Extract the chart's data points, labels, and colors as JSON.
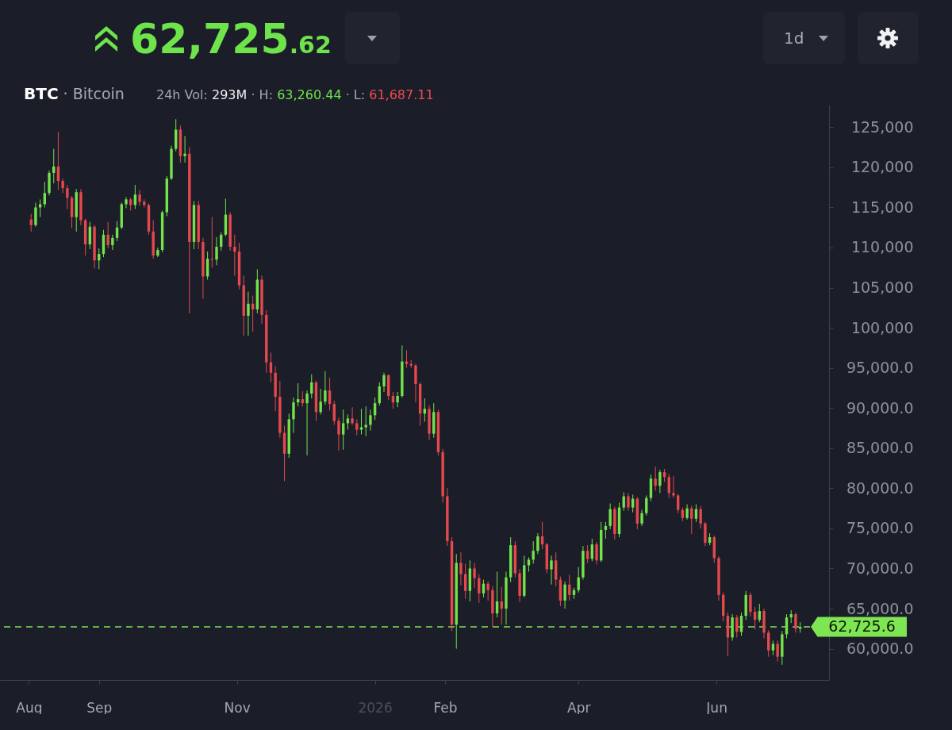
{
  "chart_data": {
    "type": "candlestick",
    "title": "62,725.62",
    "subtitle": "BTC · Bitcoin",
    "annotations": [
      "24h Vol: 293M · H: 63,260.44 · L: 61,687.11",
      "1d"
    ],
    "x": [
      "2025-08-02",
      "2025-08-04",
      "2025-08-06",
      "2025-08-08",
      "2025-08-10",
      "2025-08-12",
      "2025-08-14",
      "2025-08-16",
      "2025-08-18",
      "2025-08-20",
      "2025-08-22",
      "2025-08-24",
      "2025-08-26",
      "2025-08-28",
      "2025-08-30",
      "2025-09-01",
      "2025-09-03",
      "2025-09-05",
      "2025-09-07",
      "2025-09-09",
      "2025-09-11",
      "2025-09-13",
      "2025-09-15",
      "2025-09-17",
      "2025-09-19",
      "2025-09-21",
      "2025-09-23",
      "2025-09-25",
      "2025-09-27",
      "2025-09-29",
      "2025-10-01",
      "2025-10-03",
      "2025-10-05",
      "2025-10-07",
      "2025-10-09",
      "2025-10-11",
      "2025-10-13",
      "2025-10-15",
      "2025-10-17",
      "2025-10-19",
      "2025-10-21",
      "2025-10-23",
      "2025-10-25",
      "2025-10-27",
      "2025-10-29",
      "2025-10-31",
      "2025-11-02",
      "2025-11-04",
      "2025-11-06",
      "2025-11-08",
      "2025-11-10",
      "2025-11-12",
      "2025-11-14",
      "2025-11-16",
      "2025-11-18",
      "2025-11-20",
      "2025-11-22",
      "2025-11-24",
      "2025-11-26",
      "2025-11-28",
      "2025-11-30",
      "2025-12-02",
      "2025-12-04",
      "2025-12-06",
      "2025-12-08",
      "2025-12-10",
      "2025-12-12",
      "2025-12-14",
      "2025-12-16",
      "2025-12-18",
      "2025-12-20",
      "2025-12-22",
      "2025-12-24",
      "2025-12-26",
      "2025-12-28",
      "2025-12-30",
      "2026-01-01",
      "2026-01-03",
      "2026-01-05",
      "2026-01-07",
      "2026-01-09",
      "2026-01-11",
      "2026-01-13",
      "2026-01-15",
      "2026-01-17",
      "2026-01-19",
      "2026-01-21",
      "2026-01-23",
      "2026-01-25",
      "2026-01-27",
      "2026-01-29",
      "2026-01-31",
      "2026-02-02",
      "2026-02-04",
      "2026-02-06",
      "2026-02-08",
      "2026-02-10",
      "2026-02-12",
      "2026-02-14",
      "2026-02-16",
      "2026-02-18",
      "2026-02-20",
      "2026-02-22",
      "2026-02-24",
      "2026-02-26",
      "2026-02-28",
      "2026-03-02",
      "2026-03-04",
      "2026-03-06",
      "2026-03-08",
      "2026-03-10",
      "2026-03-12",
      "2026-03-14",
      "2026-03-16",
      "2026-03-18",
      "2026-03-20",
      "2026-03-22",
      "2026-03-24",
      "2026-03-26",
      "2026-03-28",
      "2026-03-30",
      "2026-04-01",
      "2026-04-03",
      "2026-04-05",
      "2026-04-07",
      "2026-04-09",
      "2026-04-11",
      "2026-04-13",
      "2026-04-15",
      "2026-04-17",
      "2026-04-19",
      "2026-04-21",
      "2026-04-23",
      "2026-04-25",
      "2026-04-27",
      "2026-04-29",
      "2026-05-01",
      "2026-05-03",
      "2026-05-05",
      "2026-05-07",
      "2026-05-09",
      "2026-05-11",
      "2026-05-13",
      "2026-05-15",
      "2026-05-17",
      "2026-05-19",
      "2026-05-21",
      "2026-05-23",
      "2026-05-25",
      "2026-05-27",
      "2026-05-29",
      "2026-05-31",
      "2026-06-02",
      "2026-06-04",
      "2026-06-06",
      "2026-06-08",
      "2026-06-10",
      "2026-06-12",
      "2026-06-14",
      "2026-06-16",
      "2026-06-18",
      "2026-06-20",
      "2026-06-22",
      "2026-06-24",
      "2026-06-26",
      "2026-06-28",
      "2026-06-30",
      "2026-07-02",
      "2026-07-04",
      "2026-07-06",
      "2026-07-08"
    ],
    "ohlc": [
      [
        113500,
        114200,
        112000,
        112800
      ],
      [
        112800,
        115600,
        112600,
        115000
      ],
      [
        115000,
        116000,
        113800,
        115400
      ],
      [
        115400,
        118200,
        115000,
        116800
      ],
      [
        116800,
        119600,
        116500,
        119300
      ],
      [
        119300,
        122300,
        118000,
        120100
      ],
      [
        120100,
        124400,
        117200,
        118300
      ],
      [
        118300,
        118600,
        116800,
        117400
      ],
      [
        117400,
        117800,
        114800,
        116200
      ],
      [
        116200,
        116400,
        112400,
        113800
      ],
      [
        113800,
        117300,
        112000,
        116900
      ],
      [
        116900,
        117300,
        112800,
        113400
      ],
      [
        113400,
        113600,
        109000,
        110400
      ],
      [
        110400,
        113200,
        109800,
        112600
      ],
      [
        112600,
        112800,
        107400,
        108400
      ],
      [
        108400,
        109900,
        107300,
        109200
      ],
      [
        109200,
        112200,
        108800,
        111600
      ],
      [
        111600,
        113200,
        109900,
        110300
      ],
      [
        110300,
        111600,
        109700,
        111200
      ],
      [
        111200,
        113300,
        110800,
        112500
      ],
      [
        112500,
        115600,
        112300,
        115400
      ],
      [
        115400,
        116300,
        114900,
        116000
      ],
      [
        116000,
        116200,
        114600,
        115300
      ],
      [
        115300,
        117800,
        114800,
        116600
      ],
      [
        116600,
        117200,
        115200,
        115700
      ],
      [
        115700,
        116000,
        115000,
        115300
      ],
      [
        115300,
        115500,
        111600,
        112000
      ],
      [
        112000,
        113400,
        108600,
        109000
      ],
      [
        109000,
        110000,
        108800,
        109700
      ],
      [
        109700,
        114600,
        109400,
        114400
      ],
      [
        114400,
        118900,
        113900,
        118600
      ],
      [
        118600,
        122700,
        118400,
        122300
      ],
      [
        122300,
        126000,
        122000,
        124700
      ],
      [
        124700,
        125200,
        120600,
        121400
      ],
      [
        121400,
        123900,
        120600,
        121700
      ],
      [
        121700,
        122500,
        101800,
        110700
      ],
      [
        110700,
        115800,
        109800,
        115300
      ],
      [
        115300,
        115800,
        109800,
        110700
      ],
      [
        110700,
        111200,
        103600,
        106400
      ],
      [
        106400,
        109500,
        106000,
        108600
      ],
      [
        108600,
        113800,
        107500,
        108500
      ],
      [
        108500,
        111300,
        107800,
        110100
      ],
      [
        110100,
        111900,
        109600,
        111600
      ],
      [
        111600,
        116100,
        111400,
        114100
      ],
      [
        114100,
        114400,
        109600,
        110100
      ],
      [
        110100,
        111600,
        106500,
        109500
      ],
      [
        109500,
        110600,
        104800,
        105300
      ],
      [
        105300,
        106500,
        99000,
        101500
      ],
      [
        101500,
        104500,
        99000,
        103000
      ],
      [
        103000,
        104000,
        99500,
        102300
      ],
      [
        102300,
        107300,
        101800,
        106000
      ],
      [
        106000,
        106500,
        100500,
        101600
      ],
      [
        101600,
        102200,
        94400,
        95700
      ],
      [
        95700,
        96900,
        93200,
        94400
      ],
      [
        94400,
        95200,
        89600,
        91400
      ],
      [
        91400,
        93400,
        86300,
        86900
      ],
      [
        86900,
        87800,
        80900,
        84300
      ],
      [
        84300,
        89300,
        83800,
        88600
      ],
      [
        88600,
        91300,
        86900,
        90700
      ],
      [
        90700,
        93100,
        90200,
        91100
      ],
      [
        91100,
        92100,
        90200,
        90600
      ],
      [
        90600,
        92200,
        84100,
        91800
      ],
      [
        91800,
        94200,
        91200,
        93200
      ],
      [
        93200,
        93400,
        88400,
        89500
      ],
      [
        89500,
        92400,
        89200,
        90800
      ],
      [
        90800,
        94600,
        90400,
        92200
      ],
      [
        92200,
        93800,
        89700,
        90500
      ],
      [
        90500,
        90900,
        87900,
        88400
      ],
      [
        88400,
        88800,
        84700,
        86700
      ],
      [
        86700,
        89800,
        84800,
        88100
      ],
      [
        88100,
        89200,
        87300,
        88700
      ],
      [
        88700,
        90100,
        87900,
        88100
      ],
      [
        88100,
        88600,
        86600,
        87300
      ],
      [
        87300,
        89900,
        86700,
        87600
      ],
      [
        87600,
        90200,
        86500,
        87900
      ],
      [
        87900,
        89800,
        87200,
        89100
      ],
      [
        89100,
        91300,
        88500,
        90600
      ],
      [
        90600,
        93200,
        90300,
        92700
      ],
      [
        92700,
        94400,
        92000,
        94100
      ],
      [
        94100,
        94200,
        91000,
        91500
      ],
      [
        91500,
        92000,
        89900,
        90700
      ],
      [
        90700,
        92000,
        90100,
        91500
      ],
      [
        91500,
        97800,
        91300,
        95800
      ],
      [
        95800,
        97200,
        95000,
        95500
      ],
      [
        95500,
        96000,
        95000,
        95300
      ],
      [
        95300,
        95500,
        90700,
        93000
      ],
      [
        93000,
        93200,
        87800,
        89300
      ],
      [
        89300,
        91200,
        88300,
        89900
      ],
      [
        89900,
        90300,
        86000,
        86800
      ],
      [
        86800,
        90600,
        86300,
        89500
      ],
      [
        89500,
        89800,
        84100,
        84500
      ],
      [
        84500,
        84900,
        78200,
        79000
      ],
      [
        79000,
        80000,
        72800,
        73400
      ],
      [
        73400,
        73900,
        62200,
        63000
      ],
      [
        63000,
        71800,
        60000,
        70700
      ],
      [
        70700,
        72000,
        67900,
        69300
      ],
      [
        69300,
        70600,
        66200,
        67200
      ],
      [
        67200,
        71000,
        65900,
        70000
      ],
      [
        70000,
        70700,
        67600,
        68800
      ],
      [
        68800,
        69300,
        65700,
        66900
      ],
      [
        66900,
        68600,
        66400,
        68100
      ],
      [
        68100,
        68400,
        66000,
        67300
      ],
      [
        67300,
        67800,
        62700,
        64400
      ],
      [
        64400,
        69600,
        63900,
        65900
      ],
      [
        65900,
        67700,
        63000,
        65000
      ],
      [
        65000,
        69600,
        63000,
        68900
      ],
      [
        68900,
        73900,
        68300,
        72900
      ],
      [
        72900,
        73400,
        68900,
        69400
      ],
      [
        69400,
        69900,
        65800,
        66600
      ],
      [
        66600,
        71600,
        66400,
        70400
      ],
      [
        70400,
        71400,
        69600,
        71100
      ],
      [
        71100,
        73400,
        70600,
        72200
      ],
      [
        72200,
        74400,
        71800,
        74000
      ],
      [
        74000,
        75800,
        72400,
        73000
      ],
      [
        73000,
        73200,
        69400,
        69900
      ],
      [
        69900,
        71600,
        68000,
        71000
      ],
      [
        71000,
        72000,
        67800,
        68600
      ],
      [
        68600,
        69000,
        65300,
        66000
      ],
      [
        66000,
        68400,
        65000,
        68000
      ],
      [
        68000,
        69200,
        66000,
        66700
      ],
      [
        66700,
        67600,
        66200,
        67300
      ],
      [
        67300,
        70200,
        67000,
        68900
      ],
      [
        68900,
        72800,
        68600,
        72200
      ],
      [
        72200,
        72900,
        70700,
        71200
      ],
      [
        71200,
        73700,
        70900,
        73000
      ],
      [
        73000,
        73300,
        70500,
        71000
      ],
      [
        71000,
        75800,
        70800,
        74800
      ],
      [
        74800,
        75800,
        73700,
        75300
      ],
      [
        75300,
        78100,
        74900,
        77400
      ],
      [
        77400,
        77700,
        73600,
        74300
      ],
      [
        74300,
        78200,
        73900,
        77600
      ],
      [
        77600,
        79500,
        77200,
        79000
      ],
      [
        79000,
        79400,
        77200,
        77600
      ],
      [
        77600,
        79200,
        77000,
        78700
      ],
      [
        78700,
        78900,
        74900,
        75600
      ],
      [
        75600,
        77300,
        75300,
        76900
      ],
      [
        76900,
        79100,
        76600,
        78800
      ],
      [
        78800,
        81700,
        78400,
        81200
      ],
      [
        81200,
        82700,
        79700,
        80300
      ],
      [
        80300,
        82300,
        79400,
        82000
      ],
      [
        82000,
        82400,
        80800,
        81400
      ],
      [
        81400,
        81800,
        78800,
        79400
      ],
      [
        79400,
        81500,
        78800,
        79100
      ],
      [
        79100,
        79300,
        76900,
        77300
      ],
      [
        77300,
        77600,
        75900,
        76300
      ],
      [
        76300,
        78000,
        76100,
        77500
      ],
      [
        77500,
        77800,
        74300,
        76200
      ],
      [
        76200,
        78000,
        75800,
        77400
      ],
      [
        77400,
        77800,
        75000,
        75600
      ],
      [
        75600,
        75800,
        72800,
        73200
      ],
      [
        73200,
        74400,
        72900,
        73900
      ],
      [
        73900,
        74100,
        70700,
        71300
      ],
      [
        71300,
        71500,
        66000,
        66700
      ],
      [
        66700,
        67000,
        63400,
        64100
      ],
      [
        64100,
        64500,
        59100,
        61400
      ],
      [
        61400,
        64300,
        61000,
        63900
      ],
      [
        63900,
        64200,
        61400,
        62100
      ],
      [
        62100,
        64500,
        61600,
        64100
      ],
      [
        64100,
        67200,
        63600,
        66700
      ],
      [
        66700,
        67000,
        64000,
        64600
      ],
      [
        64600,
        65200,
        62400,
        63600
      ],
      [
        63600,
        65600,
        63300,
        64700
      ],
      [
        64700,
        65000,
        61300,
        62000
      ],
      [
        62000,
        62300,
        59000,
        59800
      ],
      [
        59800,
        61000,
        59200,
        60600
      ],
      [
        60600,
        61000,
        58400,
        59000
      ],
      [
        59000,
        62200,
        58000,
        61800
      ],
      [
        61800,
        64300,
        61300,
        63900
      ],
      [
        63900,
        64800,
        63200,
        64300
      ],
      [
        64300,
        64500,
        62000,
        62500
      ],
      [
        62500,
        63300,
        62000,
        62725.6
      ]
    ],
    "colors": [
      "#e5484d",
      "#74e24b",
      "#74e24b",
      "#74e24b",
      "#74e24b",
      "#74e24b",
      "#e5484d",
      "#e5484d",
      "#e5484d",
      "#e5484d",
      "#74e24b",
      "#e5484d",
      "#e5484d",
      "#74e24b",
      "#e5484d",
      "#74e24b",
      "#74e24b",
      "#e5484d",
      "#74e24b",
      "#74e24b",
      "#74e24b",
      "#74e24b",
      "#e5484d",
      "#74e24b",
      "#e5484d",
      "#e5484d",
      "#e5484d",
      "#e5484d",
      "#74e24b",
      "#74e24b",
      "#74e24b",
      "#74e24b",
      "#74e24b",
      "#e5484d",
      "#74e24b",
      "#e5484d",
      "#74e24b",
      "#e5484d",
      "#e5484d",
      "#74e24b",
      "#e5484d",
      "#74e24b",
      "#74e24b",
      "#74e24b",
      "#e5484d",
      "#e5484d",
      "#e5484d",
      "#e5484d",
      "#74e24b",
      "#e5484d",
      "#74e24b",
      "#e5484d",
      "#e5484d",
      "#e5484d",
      "#e5484d",
      "#e5484d",
      "#e5484d",
      "#74e24b",
      "#74e24b",
      "#74e24b",
      "#e5484d",
      "#74e24b",
      "#74e24b",
      "#e5484d",
      "#74e24b",
      "#74e24b",
      "#e5484d",
      "#e5484d",
      "#e5484d",
      "#74e24b",
      "#74e24b",
      "#e5484d",
      "#e5484d",
      "#74e24b",
      "#74e24b",
      "#74e24b",
      "#74e24b",
      "#74e24b",
      "#74e24b",
      "#e5484d",
      "#e5484d",
      "#74e24b",
      "#74e24b",
      "#e5484d",
      "#e5484d",
      "#e5484d",
      "#e5484d",
      "#74e24b",
      "#e5484d",
      "#74e24b",
      "#e5484d",
      "#e5484d",
      "#e5484d",
      "#e5484d",
      "#74e24b",
      "#e5484d",
      "#e5484d",
      "#74e24b",
      "#e5484d",
      "#e5484d",
      "#74e24b",
      "#e5484d",
      "#e5484d",
      "#74e24b",
      "#e5484d",
      "#74e24b",
      "#74e24b",
      "#e5484d",
      "#e5484d",
      "#74e24b",
      "#74e24b",
      "#74e24b",
      "#74e24b",
      "#e5484d",
      "#e5484d",
      "#74e24b",
      "#e5484d",
      "#e5484d",
      "#74e24b",
      "#e5484d",
      "#74e24b",
      "#74e24b",
      "#74e24b",
      "#e5484d",
      "#74e24b",
      "#e5484d",
      "#74e24b",
      "#74e24b",
      "#74e24b",
      "#e5484d",
      "#74e24b",
      "#74e24b",
      "#e5484d",
      "#74e24b",
      "#e5484d",
      "#74e24b",
      "#74e24b",
      "#74e24b",
      "#e5484d",
      "#74e24b",
      "#e5484d",
      "#e5484d",
      "#e5484d",
      "#e5484d",
      "#e5484d",
      "#74e24b",
      "#e5484d",
      "#74e24b",
      "#e5484d",
      "#e5484d",
      "#74e24b",
      "#e5484d",
      "#e5484d",
      "#e5484d",
      "#e5484d",
      "#74e24b",
      "#e5484d",
      "#74e24b",
      "#74e24b",
      "#e5484d",
      "#e5484d",
      "#74e24b",
      "#e5484d",
      "#e5484d",
      "#74e24b",
      "#e5484d",
      "#74e24b",
      "#74e24b",
      "#74e24b",
      "#e5484d",
      "#74e24b"
    ],
    "xlim": [
      "2025-07-21",
      "2026-07-19"
    ],
    "xticks": [
      {
        "value": "2025-08-01",
        "label": "Aug"
      },
      {
        "value": "2025-09-01",
        "label": "Sep"
      },
      {
        "value": "2025-11-01",
        "label": "Nov"
      },
      {
        "value": "2026-01-01",
        "label": "2026"
      },
      {
        "value": "2026-02-01",
        "label": "Feb"
      },
      {
        "value": "2026-04-01",
        "label": "Apr"
      },
      {
        "value": "2026-06-01",
        "label": "Jun"
      }
    ],
    "ylim": [
      56100,
      127800
    ],
    "yticks": [
      {
        "value": 60000,
        "label": "60,000.0"
      },
      {
        "value": 65000,
        "label": "65,000.0"
      },
      {
        "value": 70000,
        "label": "70,000.0"
      },
      {
        "value": 75000,
        "label": "75,000.0"
      },
      {
        "value": 80000,
        "label": "80,000.0"
      },
      {
        "value": 85000,
        "label": "85,000.0"
      },
      {
        "value": 90000,
        "label": "90,000.0"
      },
      {
        "value": 95000,
        "label": "95,000.0"
      },
      {
        "value": 100000,
        "label": "100,000"
      },
      {
        "value": 105000,
        "label": "105,000"
      },
      {
        "value": 110000,
        "label": "110,000"
      },
      {
        "value": 115000,
        "label": "115,000"
      },
      {
        "value": 120000,
        "label": "120,000"
      },
      {
        "value": 125000,
        "label": "125,000"
      }
    ],
    "ref_lines": [
      {
        "axis": "y",
        "value": 62725.6,
        "label": "62,725.6",
        "color": "#7ee553",
        "line_style": "dashed"
      }
    ]
  }
}
